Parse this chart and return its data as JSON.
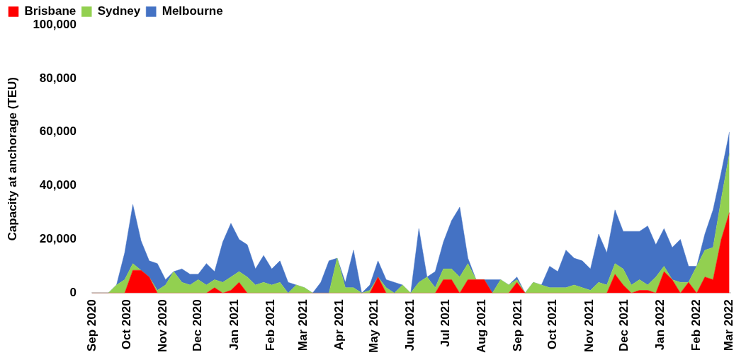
{
  "chart_data": {
    "type": "area",
    "ylabel": "Capacity at anchorage (TEU)",
    "stacked": true,
    "legend": "top",
    "grid": false,
    "marker": "none",
    "x": [
      "2020-09-01",
      "2020-09-08",
      "2020-09-15",
      "2020-09-22",
      "2020-09-29",
      "2020-10-06",
      "2020-10-13",
      "2020-10-20",
      "2020-10-27",
      "2020-11-03",
      "2020-11-10",
      "2020-11-17",
      "2020-11-24",
      "2020-12-01",
      "2020-12-08",
      "2020-12-15",
      "2020-12-22",
      "2020-12-29",
      "2021-01-05",
      "2021-01-12",
      "2021-01-19",
      "2021-01-26",
      "2021-02-02",
      "2021-02-09",
      "2021-02-16",
      "2021-02-23",
      "2021-03-02",
      "2021-03-09",
      "2021-03-16",
      "2021-03-23",
      "2021-03-30",
      "2021-04-06",
      "2021-04-13",
      "2021-04-20",
      "2021-04-27",
      "2021-05-04",
      "2021-05-11",
      "2021-05-18",
      "2021-05-25",
      "2021-06-01",
      "2021-06-08",
      "2021-06-15",
      "2021-06-22",
      "2021-06-29",
      "2021-07-06",
      "2021-07-13",
      "2021-07-20",
      "2021-07-27",
      "2021-08-03",
      "2021-08-10",
      "2021-08-17",
      "2021-08-24",
      "2021-08-31",
      "2021-09-07",
      "2021-09-14",
      "2021-09-21",
      "2021-09-28",
      "2021-10-05",
      "2021-10-12",
      "2021-10-19",
      "2021-10-26",
      "2021-11-02",
      "2021-11-09",
      "2021-11-16",
      "2021-11-23",
      "2021-11-30",
      "2021-12-07",
      "2021-12-14",
      "2021-12-21",
      "2021-12-28",
      "2022-01-04",
      "2022-01-11",
      "2022-01-18",
      "2022-01-25",
      "2022-02-01",
      "2022-02-08",
      "2022-02-15",
      "2022-02-22",
      "2022-03-01"
    ],
    "series": [
      {
        "name": "Brisbane",
        "color": "#ff0000",
        "values": [
          0,
          0,
          0,
          0,
          0,
          8500,
          8500,
          6000,
          0,
          0,
          0,
          0,
          0,
          0,
          0,
          2000,
          0,
          1000,
          4000,
          0,
          0,
          0,
          0,
          0,
          0,
          0,
          0,
          0,
          0,
          0,
          0,
          0,
          0,
          0,
          0,
          6000,
          0,
          0,
          0,
          0,
          0,
          0,
          0,
          5000,
          5000,
          0,
          5000,
          5000,
          5000,
          0,
          0,
          0,
          4000,
          0,
          0,
          0,
          0,
          0,
          0,
          0,
          0,
          0,
          0,
          0,
          7000,
          3000,
          0,
          1000,
          1000,
          0,
          8000,
          5000,
          0,
          4000,
          0,
          6000,
          5000,
          20000,
          30000
        ]
      },
      {
        "name": "Sydney",
        "color": "#92d050",
        "values": [
          0,
          0,
          0,
          3000,
          5000,
          2500,
          0,
          0,
          1000,
          3000,
          8000,
          4000,
          3000,
          5000,
          3000,
          3000,
          4000,
          5000,
          4000,
          6000,
          3000,
          4000,
          3000,
          4000,
          0,
          3000,
          2000,
          0,
          0,
          0,
          13000,
          2000,
          2000,
          0,
          1000,
          0,
          2000,
          0,
          3000,
          0,
          4000,
          6000,
          2000,
          4000,
          4000,
          6000,
          6000,
          0,
          0,
          0,
          5000,
          3000,
          1000,
          0,
          4000,
          3000,
          2000,
          2000,
          2000,
          3000,
          2000,
          1000,
          4000,
          3000,
          4000,
          6000,
          3000,
          4000,
          2000,
          6000,
          2000,
          0,
          4000,
          0,
          10000,
          10000,
          12000,
          15000,
          22000
        ]
      },
      {
        "name": "Melbourne",
        "color": "#4472c4",
        "values": [
          0,
          0,
          0,
          0,
          10000,
          22000,
          11000,
          6000,
          10000,
          2000,
          0,
          5000,
          4000,
          2000,
          8000,
          3000,
          15000,
          20000,
          12000,
          12000,
          6000,
          10000,
          6000,
          8000,
          4000,
          0,
          0,
          0,
          4000,
          12000,
          0,
          2000,
          14000,
          0,
          2000,
          6000,
          3000,
          4000,
          0,
          0,
          20000,
          0,
          6000,
          10000,
          18000,
          26000,
          2000,
          0,
          0,
          5000,
          0,
          0,
          1000,
          0,
          0,
          0,
          8000,
          6000,
          14000,
          10000,
          10000,
          8000,
          18000,
          12000,
          20000,
          14000,
          20000,
          18000,
          22000,
          12000,
          14000,
          12000,
          16000,
          6000,
          0,
          6000,
          14000,
          10000,
          8000
        ]
      }
    ],
    "xlim": [
      "2020-09-01",
      "2022-03-02"
    ],
    "xticks": [
      {
        "value": "2020-09-01",
        "label": "Sep 2020"
      },
      {
        "value": "2020-10-01",
        "label": "Oct 2020"
      },
      {
        "value": "2020-11-01",
        "label": "Nov 2020"
      },
      {
        "value": "2020-12-01",
        "label": "Dec 2020"
      },
      {
        "value": "2021-01-01",
        "label": "Jan 2021"
      },
      {
        "value": "2021-02-01",
        "label": "Feb 2021"
      },
      {
        "value": "2021-03-01",
        "label": "Mar 2021"
      },
      {
        "value": "2021-04-01",
        "label": "Apr 2021"
      },
      {
        "value": "2021-05-01",
        "label": "May 2021"
      },
      {
        "value": "2021-06-01",
        "label": "Jun 2021"
      },
      {
        "value": "2021-07-01",
        "label": "Jul 2021"
      },
      {
        "value": "2021-08-01",
        "label": "Aug 2021"
      },
      {
        "value": "2021-09-01",
        "label": "Sep 2021"
      },
      {
        "value": "2021-10-01",
        "label": "Oct 2021"
      },
      {
        "value": "2021-11-01",
        "label": "Nov 2021"
      },
      {
        "value": "2021-12-01",
        "label": "Dec 2021"
      },
      {
        "value": "2022-01-01",
        "label": "Jan 2022"
      },
      {
        "value": "2022-02-01",
        "label": "Feb 2022"
      },
      {
        "value": "2022-03-01",
        "label": "Mar 2022"
      }
    ],
    "ylim": [
      0,
      100000
    ],
    "yticks": [
      0,
      {
        "value": 20000,
        "label": "20,000"
      },
      {
        "value": 40000,
        "label": "40,000"
      },
      {
        "value": 60000,
        "label": "60,000"
      },
      {
        "value": 80000,
        "label": "80,000"
      },
      {
        "value": 100000,
        "label": "100,000"
      }
    ]
  }
}
